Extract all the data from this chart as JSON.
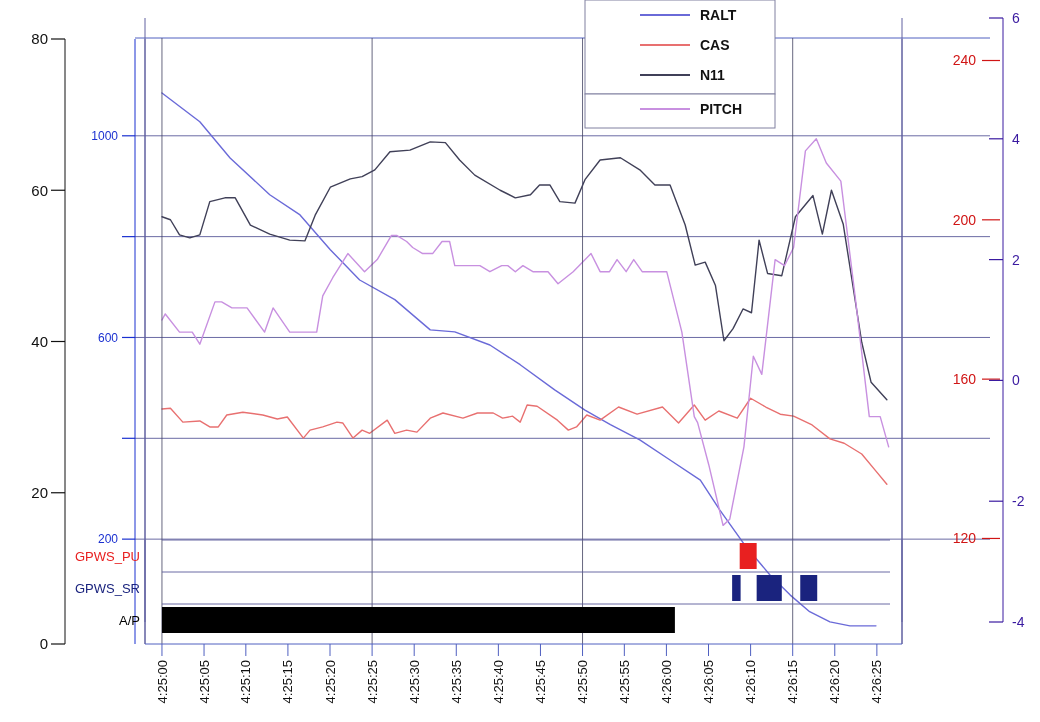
{
  "chart_data": [
    {
      "type": "line",
      "xlim": [
        4.41611,
        4.44111
      ],
      "tick_labels": "y",
      "ylim": [
        0,
        80
      ],
      "yticks": [
        0,
        20,
        40,
        60,
        80
      ],
      "y2lim": [
        -8,
        1192
      ],
      "y2ticks": [
        200,
        {
          "value": 400,
          "label": null
        },
        600,
        {
          "value": 800,
          "label": null
        },
        1000
      ],
      "y3lim": [
        93.5,
        245.4
      ],
      "y3ticks": [
        120,
        160,
        200,
        240
      ],
      "grid": "y",
      "legend": "top right",
      "series": [
        {
          "name": "RALT",
          "color": "#6a6ad8",
          "axis": "y2",
          "x": [
            4.41667,
            4.41792,
            4.41892,
            4.42023,
            4.42123,
            4.42223,
            4.4232,
            4.42436,
            4.42553,
            4.42634,
            4.4275,
            4.4285,
            4.42964,
            4.43064,
            4.43148,
            4.43245,
            4.43345,
            4.43445,
            4.43509,
            4.43592,
            4.43675,
            4.43742,
            4.43806,
            4.43873,
            4.43939,
            4.44025
          ],
          "values": [
            1085,
            1028,
            956,
            883,
            843,
            774,
            714,
            675,
            615,
            611,
            585,
            546,
            496,
            456,
            427,
            397,
            357,
            317,
            258,
            188,
            129,
            89,
            56,
            36,
            28,
            28
          ]
        },
        {
          "name": "CAS",
          "color": "#e87070",
          "axis": "y3",
          "x": [
            4.41667,
            4.41695,
            4.41736,
            4.41792,
            4.41825,
            4.41853,
            4.41881,
            4.41934,
            4.42,
            4.42048,
            4.42081,
            4.42134,
            4.42156,
            4.42198,
            4.42245,
            4.42264,
            4.42298,
            4.42328,
            4.42353,
            4.42411,
            4.42436,
            4.42475,
            4.42509,
            4.42553,
            4.42595,
            4.42661,
            4.42709,
            4.42761,
            4.42792,
            4.42825,
            4.4285,
            4.42873,
            4.42906,
            4.42973,
            4.43009,
            4.43036,
            4.4307,
            4.43114,
            4.43175,
            4.43236,
            4.4332,
            4.43373,
            4.43425,
            4.43461,
            4.43506,
            4.43567,
            4.43611,
            4.43661,
            4.43709,
            4.43753,
            4.43814,
            4.43873,
            4.4392,
            4.43978,
            4.44025,
            4.44061
          ],
          "values": [
            152.5,
            152.7,
            149.2,
            149.5,
            148,
            148,
            151,
            151.7,
            151,
            150,
            150.5,
            145.2,
            147.2,
            148,
            149.2,
            149,
            145.2,
            147.2,
            146.4,
            149.7,
            146.4,
            147.2,
            146.7,
            150.2,
            151.5,
            150.2,
            151.5,
            151.5,
            150.2,
            150.7,
            149.2,
            153.5,
            153.2,
            149.7,
            147.2,
            148,
            151,
            149.7,
            153,
            151.2,
            153,
            149,
            153.5,
            149.7,
            152,
            150.2,
            155.2,
            153,
            151.2,
            150.7,
            148.5,
            145,
            143.9,
            141.2,
            136.9,
            133.6
          ]
        },
        {
          "name": "N11",
          "color": "#404058",
          "x": [
            4.41667,
            4.41695,
            4.41725,
            4.41759,
            4.41792,
            4.41825,
            4.41875,
            4.41909,
            4.41959,
            4.42023,
            4.42089,
            4.42139,
            4.42173,
            4.42223,
            4.42289,
            4.42328,
            4.4237,
            4.4242,
            4.42486,
            4.42553,
            4.42603,
            4.4265,
            4.427,
            4.42784,
            4.42834,
            4.42884,
            4.42914,
            4.42948,
            4.42981,
            4.43031,
            4.43064,
            4.43114,
            4.43181,
            4.43245,
            4.43295,
            4.43345,
            4.43395,
            4.43428,
            4.43461,
            4.43495,
            4.43523,
            4.43553,
            4.43586,
            4.43614,
            4.43639,
            4.43667,
            4.43714,
            4.43759,
            4.43817,
            4.43848,
            4.43878,
            4.43917,
            4.43978,
            4.44009,
            4.44061
          ],
          "values": [
            56.5,
            56.1,
            54.1,
            53.7,
            54.1,
            58.5,
            59,
            59,
            55.4,
            54.2,
            53.4,
            53.3,
            56.7,
            60.4,
            61.5,
            61.8,
            62.7,
            65.1,
            65.3,
            66.4,
            66.3,
            64,
            62,
            60,
            59,
            59.4,
            60.7,
            60.7,
            58.5,
            58.3,
            61.4,
            64,
            64.3,
            62.7,
            60.7,
            60.7,
            55.4,
            50.1,
            50.5,
            47.4,
            40.1,
            41.7,
            44.3,
            43.8,
            53.4,
            49,
            48.7,
            56.5,
            59.3,
            54.2,
            60,
            55.5,
            39.9,
            34.6,
            32.3
          ]
        }
      ]
    },
    {
      "type": "line",
      "xlim": [
        4.41611,
        4.44111
      ],
      "tick_labels": "y",
      "ylim": [
        -4,
        6
      ],
      "yticks": [
        -4,
        -2,
        0,
        2,
        4,
        6
      ],
      "legend": "top right",
      "series": [
        {
          "name": "PITCH",
          "color": "#c890e0",
          "x": [
            4.41667,
            4.41678,
            4.41725,
            4.41767,
            4.41792,
            4.41842,
            4.41864,
            4.41898,
            4.41948,
            4.42006,
            4.42034,
            4.42089,
            4.42178,
            4.42198,
            4.42231,
            4.42281,
            4.42336,
            4.42378,
            4.42425,
            4.42442,
            4.42475,
            4.42495,
            4.42528,
            4.42561,
            4.42592,
            4.42617,
            4.42634,
            4.42717,
            4.4275,
            4.42789,
            4.42809,
            4.42834,
            4.42859,
            4.42892,
            4.42942,
            4.42975,
            4.43025,
            4.43084,
            4.43114,
            4.43145,
            4.4317,
            4.432,
            4.43225,
            4.43253,
            4.43334,
            4.43384,
            4.43425,
            4.43436,
            4.43473,
            4.4352,
            4.43542,
            4.43589,
            4.4362,
            4.43648,
            4.43692,
            4.43723,
            4.43753,
            4.43792,
            4.43828,
            4.43861,
            4.43909,
            4.43956,
            4.44003,
            4.44039,
            4.44067
          ],
          "values": [
            1.0,
            1.1,
            0.8,
            0.8,
            0.6,
            1.3,
            1.3,
            1.2,
            1.2,
            0.8,
            1.2,
            0.8,
            0.8,
            1.4,
            1.7,
            2.1,
            1.8,
            2.0,
            2.4,
            2.4,
            2.3,
            2.2,
            2.1,
            2.1,
            2.3,
            2.3,
            1.9,
            1.9,
            1.8,
            1.9,
            1.9,
            1.8,
            1.9,
            1.8,
            1.8,
            1.6,
            1.8,
            2.1,
            1.8,
            1.8,
            2.0,
            1.8,
            2.0,
            1.8,
            1.8,
            0.8,
            -0.6,
            -0.7,
            -1.4,
            -2.4,
            -2.3,
            -1.1,
            0.4,
            0.1,
            2.0,
            1.9,
            2.2,
            3.8,
            4.0,
            3.6,
            3.3,
            1.4,
            -0.6,
            -0.6,
            -1.1
          ]
        }
      ]
    },
    {
      "type": "bar",
      "orientation": "horizontal",
      "categories": [
        "GPWS_PU",
        "GPWS_SR",
        "A/P"
      ],
      "xlim": [
        4.41611,
        4.44111
      ],
      "xticks": [
        {
          "value": 4.41667,
          "label": "4:25:00"
        },
        {
          "value": 4.41806,
          "label": "4:25:05"
        },
        {
          "value": 4.41944,
          "label": "4:25:10"
        },
        {
          "value": 4.42083,
          "label": "4:25:15"
        },
        {
          "value": 4.42222,
          "label": "4:25:20"
        },
        {
          "value": 4.42361,
          "label": "4:25:25"
        },
        {
          "value": 4.425,
          "label": "4:25:30"
        },
        {
          "value": 4.42639,
          "label": "4:25:35"
        },
        {
          "value": 4.42778,
          "label": "4:25:40"
        },
        {
          "value": 4.42917,
          "label": "4:25:45"
        },
        {
          "value": 4.43056,
          "label": "4:25:50"
        },
        {
          "value": 4.43194,
          "label": "4:25:55"
        },
        {
          "value": 4.43333,
          "label": "4:26:00"
        },
        {
          "value": 4.43472,
          "label": "4:26:05"
        },
        {
          "value": 4.43611,
          "label": "4:26:10"
        },
        {
          "value": 4.4375,
          "label": "4:26:15"
        },
        {
          "value": 4.43889,
          "label": "4:26:20"
        },
        {
          "value": 4.44028,
          "label": "4:26:25"
        }
      ],
      "grid": true,
      "series": [
        {
          "colors": [
            "#e82020",
            "#1a237e",
            "#000000"
          ],
          "base": [
            4.43575,
            4.4355,
            4.41667
          ],
          "values": [
            0.00056,
            0.00028,
            0.01694
          ]
        },
        {
          "color": "#1a237e",
          "base": [
            null,
            4.43631,
            null
          ],
          "values": [
            null,
            0.00083,
            null
          ]
        },
        {
          "color": "#1a237e",
          "base": [
            null,
            4.43775,
            null
          ],
          "values": [
            null,
            0.00056,
            null
          ]
        }
      ]
    }
  ]
}
